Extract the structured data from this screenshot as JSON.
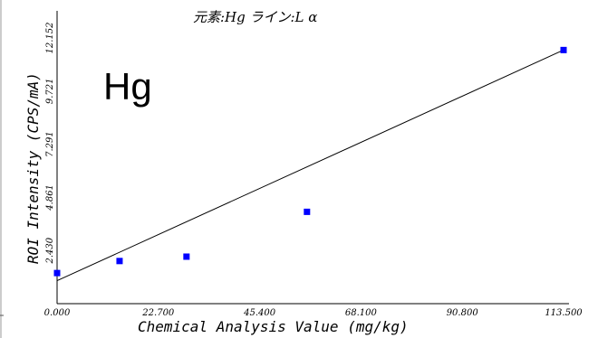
{
  "chart_data": {
    "type": "scatter",
    "title": "元素:Hg ライン:L α",
    "annotation": "Hg",
    "xlabel": "Chemical Analysis Value (mg/kg)",
    "ylabel": "ROI Intensity (CPS/mA)",
    "xlim": [
      0,
      113.5
    ],
    "ylim": [
      0,
      12.152
    ],
    "x_ticks": [
      "0.000",
      "22.700",
      "45.400",
      "68.100",
      "90.800",
      "113.500"
    ],
    "y_ticks": [
      "2.430",
      "4.861",
      "7.291",
      "9.721",
      "12.152"
    ],
    "points": [
      {
        "x": 0.0,
        "y": 1.4
      },
      {
        "x": 14.0,
        "y": 1.95
      },
      {
        "x": 29.0,
        "y": 2.15
      },
      {
        "x": 56.0,
        "y": 4.2
      },
      {
        "x": 113.5,
        "y": 11.6
      }
    ],
    "fit_line": {
      "x": [
        0,
        113.5
      ],
      "y": [
        1.05,
        11.6
      ]
    },
    "marker_color": "#0000ff",
    "line_color": "#000000",
    "grid": false
  }
}
